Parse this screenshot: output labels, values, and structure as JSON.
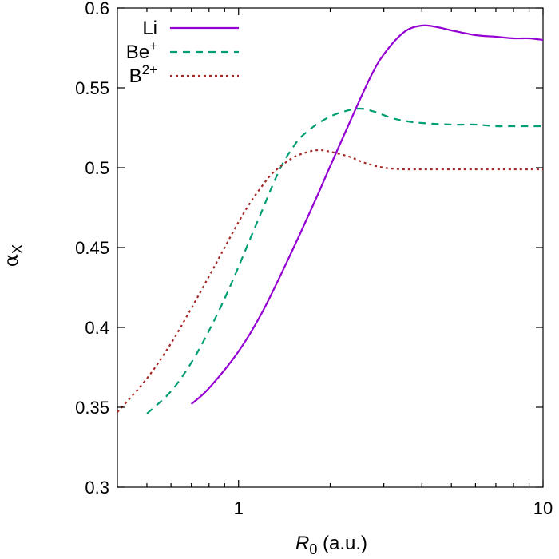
{
  "chart_data": {
    "type": "line",
    "x_scale": "log",
    "xlim": [
      0.4,
      10
    ],
    "ylim": [
      0.3,
      0.6
    ],
    "xlabel_symbol": "R",
    "xlabel_subscript": "0",
    "xlabel_unit": " (a.u.)",
    "ylabel_symbol": "α",
    "ylabel_subscript": "X",
    "x_ticks": [
      {
        "value": 1,
        "label": "1"
      },
      {
        "value": 10,
        "label": "10"
      }
    ],
    "y_ticks": [
      {
        "value": 0.3,
        "label": "0.3"
      },
      {
        "value": 0.35,
        "label": "0.35"
      },
      {
        "value": 0.4,
        "label": "0.4"
      },
      {
        "value": 0.45,
        "label": "0.45"
      },
      {
        "value": 0.5,
        "label": "0.5"
      },
      {
        "value": 0.55,
        "label": "0.55"
      },
      {
        "value": 0.6,
        "label": "0.6"
      }
    ],
    "legend_position": "top-left",
    "series": [
      {
        "name": "Li",
        "name_sup": "",
        "color": "#9400d3",
        "dash": "solid",
        "x": [
          0.7,
          0.8,
          1.0,
          1.2,
          1.5,
          1.8,
          2.0,
          2.3,
          2.7,
          3.0,
          3.5,
          4.0,
          4.5,
          5.0,
          6.0,
          7.0,
          8.0,
          9.0,
          10.0
        ],
        "y": [
          0.352,
          0.362,
          0.385,
          0.41,
          0.448,
          0.481,
          0.501,
          0.527,
          0.556,
          0.571,
          0.585,
          0.589,
          0.588,
          0.586,
          0.583,
          0.582,
          0.581,
          0.581,
          0.58
        ]
      },
      {
        "name": "Be",
        "name_sup": "+",
        "color": "#009e73",
        "dash": "dashed",
        "x": [
          0.5,
          0.6,
          0.7,
          0.8,
          0.9,
          1.0,
          1.1,
          1.2,
          1.3,
          1.4,
          1.5,
          1.6,
          1.8,
          2.0,
          2.2,
          2.5,
          2.8,
          3.2,
          3.6,
          4.0,
          5.0,
          6.0,
          7.0,
          8.0,
          10.0
        ],
        "y": [
          0.346,
          0.36,
          0.378,
          0.398,
          0.418,
          0.438,
          0.457,
          0.474,
          0.49,
          0.503,
          0.512,
          0.519,
          0.527,
          0.532,
          0.535,
          0.537,
          0.535,
          0.531,
          0.529,
          0.528,
          0.527,
          0.527,
          0.526,
          0.526,
          0.526
        ]
      },
      {
        "name": "B",
        "name_sup": "2+",
        "color": "#a52a2a",
        "dash": "dotted",
        "x": [
          0.4,
          0.5,
          0.6,
          0.7,
          0.8,
          0.9,
          1.0,
          1.1,
          1.2,
          1.3,
          1.5,
          1.7,
          1.85,
          2.0,
          2.3,
          2.6,
          3.0,
          3.5,
          4.0,
          5.0,
          6.0,
          8.0,
          10.0
        ],
        "y": [
          0.347,
          0.368,
          0.39,
          0.412,
          0.432,
          0.45,
          0.466,
          0.479,
          0.489,
          0.497,
          0.506,
          0.51,
          0.511,
          0.51,
          0.507,
          0.503,
          0.5,
          0.499,
          0.499,
          0.499,
          0.499,
          0.499,
          0.499
        ]
      }
    ]
  }
}
